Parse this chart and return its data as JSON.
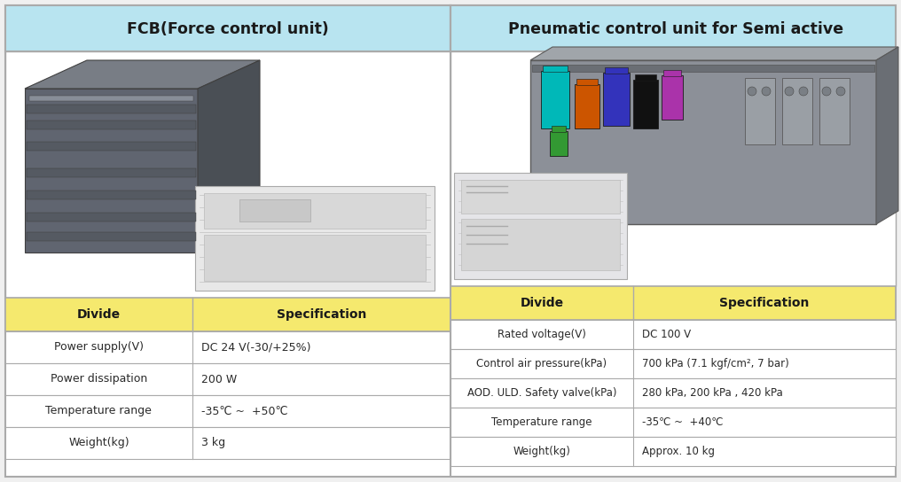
{
  "left_title": "FCB(Force control unit)",
  "right_title": "Pneumatic control unit for Semi active",
  "header_bg": "#b8e4f0",
  "header_text_color": "#1a1a1a",
  "table_header_bg": "#f5e96e",
  "table_row_bg": "#ffffff",
  "table_border_color": "#aaaaaa",
  "outer_border_color": "#aaaaaa",
  "background_color": "#f0f0f0",
  "left_table": {
    "headers": [
      "Divide",
      "Specification"
    ],
    "rows": [
      [
        "Power supply(V)",
        "DC 24 V(-30/+25%)"
      ],
      [
        "Power dissipation",
        "200 W"
      ],
      [
        "Temperature range",
        "-35℃ ~  +50℃"
      ],
      [
        "Weight(kg)",
        "3 kg"
      ]
    ]
  },
  "right_table": {
    "headers": [
      "Divide",
      "Specification"
    ],
    "rows": [
      [
        "Rated voltage(V)",
        "DC 100 V"
      ],
      [
        "Control air pressure(kPa)",
        "700 kPa (7.1 kgf/cm², 7 bar)"
      ],
      [
        "AOD. ULD. Safety valve(kPa)",
        "280 kPa, 200 kPa , 420 kPa"
      ],
      [
        "Temperature range",
        "-35℃ ~  +40℃"
      ],
      [
        "Weight(kg)",
        "Approx. 10 kg"
      ]
    ]
  },
  "fig_width": 10.16,
  "fig_height": 5.44,
  "dpi": 100
}
